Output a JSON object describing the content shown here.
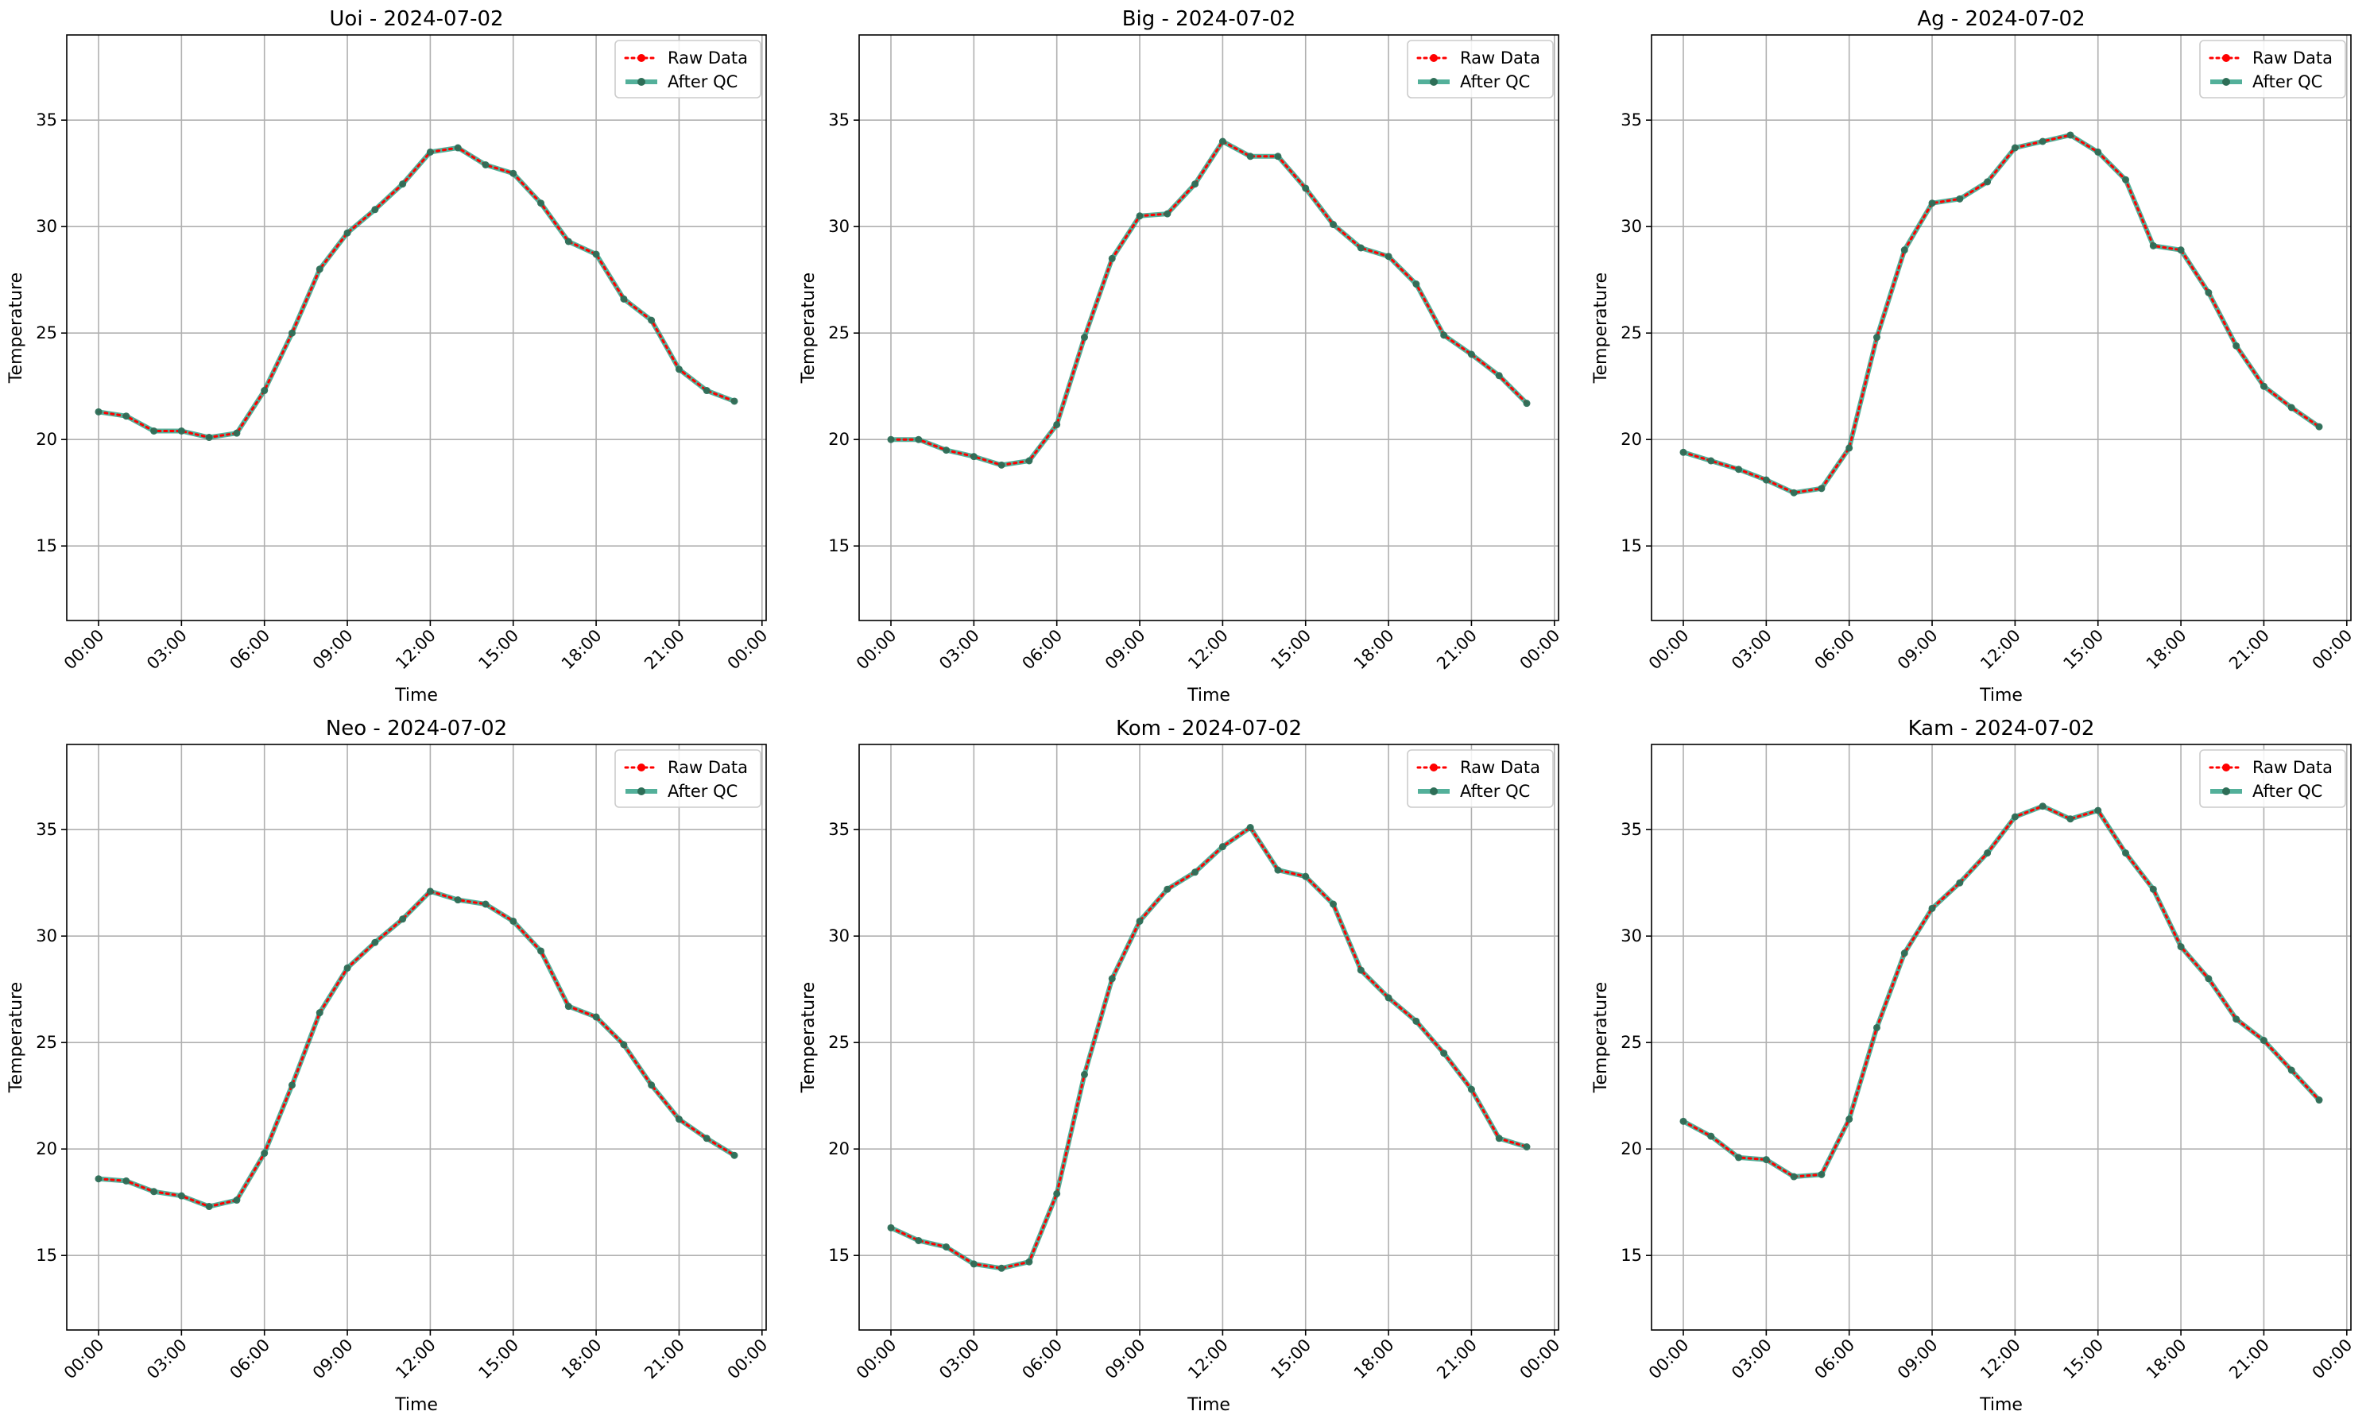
{
  "chart_data": [
    {
      "type": "line",
      "title": "Uoi - 2024-07-02",
      "xlabel": "Time",
      "ylabel": "Temperature",
      "ylim": [
        11.5,
        39
      ],
      "yticks": [
        15,
        20,
        25,
        30,
        35
      ],
      "xticks": [
        "00:00",
        "03:00",
        "06:00",
        "09:00",
        "12:00",
        "15:00",
        "18:00",
        "21:00",
        "00:00"
      ],
      "x": [
        "00:00",
        "01:00",
        "02:00",
        "03:00",
        "04:00",
        "05:00",
        "06:00",
        "07:00",
        "08:00",
        "09:00",
        "10:00",
        "11:00",
        "12:00",
        "13:00",
        "14:00",
        "15:00",
        "16:00",
        "17:00",
        "18:00",
        "19:00",
        "20:00",
        "21:00",
        "22:00",
        "23:00"
      ],
      "legend": {
        "position": "upper right",
        "entries": [
          "Raw Data",
          "After QC"
        ]
      },
      "grid": true,
      "series": [
        {
          "name": "Raw Data",
          "color": "#ff0000",
          "style": "dotted",
          "values": [
            21.3,
            21.1,
            20.4,
            20.4,
            20.1,
            20.3,
            22.3,
            25.0,
            28.0,
            29.7,
            30.8,
            32.0,
            33.5,
            33.7,
            32.9,
            32.5,
            31.1,
            29.3,
            28.7,
            26.6,
            25.6,
            23.3,
            22.3,
            21.8
          ]
        },
        {
          "name": "After QC",
          "color": "#239a7d",
          "style": "solid",
          "values": [
            21.3,
            21.1,
            20.4,
            20.4,
            20.1,
            20.3,
            22.3,
            25.0,
            28.0,
            29.7,
            30.8,
            32.0,
            33.5,
            33.7,
            32.9,
            32.5,
            31.1,
            29.3,
            28.7,
            26.6,
            25.6,
            23.3,
            22.3,
            21.8
          ]
        }
      ]
    },
    {
      "type": "line",
      "title": "Big - 2024-07-02",
      "xlabel": "Time",
      "ylabel": "Temperature",
      "ylim": [
        11.5,
        39
      ],
      "yticks": [
        15,
        20,
        25,
        30,
        35
      ],
      "xticks": [
        "00:00",
        "03:00",
        "06:00",
        "09:00",
        "12:00",
        "15:00",
        "18:00",
        "21:00",
        "00:00"
      ],
      "x": [
        "00:00",
        "01:00",
        "02:00",
        "03:00",
        "04:00",
        "05:00",
        "06:00",
        "07:00",
        "08:00",
        "09:00",
        "10:00",
        "11:00",
        "12:00",
        "13:00",
        "14:00",
        "15:00",
        "16:00",
        "17:00",
        "18:00",
        "19:00",
        "20:00",
        "21:00",
        "22:00",
        "23:00"
      ],
      "legend": {
        "position": "upper right",
        "entries": [
          "Raw Data",
          "After QC"
        ]
      },
      "grid": true,
      "series": [
        {
          "name": "Raw Data",
          "color": "#ff0000",
          "style": "dotted",
          "values": [
            20.0,
            20.0,
            19.5,
            19.2,
            18.8,
            19.0,
            20.7,
            24.8,
            28.5,
            30.5,
            30.6,
            32.0,
            34.0,
            33.3,
            33.3,
            31.8,
            30.1,
            29.0,
            28.6,
            27.3,
            24.9,
            24.0,
            23.0,
            21.7
          ]
        },
        {
          "name": "After QC",
          "color": "#239a7d",
          "style": "solid",
          "values": [
            20.0,
            20.0,
            19.5,
            19.2,
            18.8,
            19.0,
            20.7,
            24.8,
            28.5,
            30.5,
            30.6,
            32.0,
            34.0,
            33.3,
            33.3,
            31.8,
            30.1,
            29.0,
            28.6,
            27.3,
            24.9,
            24.0,
            23.0,
            21.7
          ]
        }
      ]
    },
    {
      "type": "line",
      "title": "Ag - 2024-07-02",
      "xlabel": "Time",
      "ylabel": "Temperature",
      "ylim": [
        11.5,
        39
      ],
      "yticks": [
        15,
        20,
        25,
        30,
        35
      ],
      "xticks": [
        "00:00",
        "03:00",
        "06:00",
        "09:00",
        "12:00",
        "15:00",
        "18:00",
        "21:00",
        "00:00"
      ],
      "x": [
        "00:00",
        "01:00",
        "02:00",
        "03:00",
        "04:00",
        "05:00",
        "06:00",
        "07:00",
        "08:00",
        "09:00",
        "10:00",
        "11:00",
        "12:00",
        "13:00",
        "14:00",
        "15:00",
        "16:00",
        "17:00",
        "18:00",
        "19:00",
        "20:00",
        "21:00",
        "22:00",
        "23:00"
      ],
      "legend": {
        "position": "upper right",
        "entries": [
          "Raw Data",
          "After QC"
        ]
      },
      "grid": true,
      "series": [
        {
          "name": "Raw Data",
          "color": "#ff0000",
          "style": "dotted",
          "values": [
            19.4,
            19.0,
            18.6,
            18.1,
            17.5,
            17.7,
            19.6,
            24.8,
            28.9,
            31.1,
            31.3,
            32.1,
            33.7,
            34.0,
            34.3,
            33.5,
            32.2,
            29.1,
            28.9,
            26.9,
            24.4,
            22.5,
            21.5,
            20.6
          ]
        },
        {
          "name": "After QC",
          "color": "#239a7d",
          "style": "solid",
          "values": [
            19.4,
            19.0,
            18.6,
            18.1,
            17.5,
            17.7,
            19.6,
            24.8,
            28.9,
            31.1,
            31.3,
            32.1,
            33.7,
            34.0,
            34.3,
            33.5,
            32.2,
            29.1,
            28.9,
            26.9,
            24.4,
            22.5,
            21.5,
            20.6
          ]
        }
      ]
    },
    {
      "type": "line",
      "title": "Neo - 2024-07-02",
      "xlabel": "Time",
      "ylabel": "Temperature",
      "ylim": [
        11.5,
        39
      ],
      "yticks": [
        15,
        20,
        25,
        30,
        35
      ],
      "xticks": [
        "00:00",
        "03:00",
        "06:00",
        "09:00",
        "12:00",
        "15:00",
        "18:00",
        "21:00",
        "00:00"
      ],
      "x": [
        "00:00",
        "01:00",
        "02:00",
        "03:00",
        "04:00",
        "05:00",
        "06:00",
        "07:00",
        "08:00",
        "09:00",
        "10:00",
        "11:00",
        "12:00",
        "13:00",
        "14:00",
        "15:00",
        "16:00",
        "17:00",
        "18:00",
        "19:00",
        "20:00",
        "21:00",
        "22:00",
        "23:00"
      ],
      "legend": {
        "position": "upper right",
        "entries": [
          "Raw Data",
          "After QC"
        ]
      },
      "grid": true,
      "series": [
        {
          "name": "Raw Data",
          "color": "#ff0000",
          "style": "dotted",
          "values": [
            18.6,
            18.5,
            18.0,
            17.8,
            17.3,
            17.6,
            19.8,
            23.0,
            26.4,
            28.5,
            29.7,
            30.8,
            32.1,
            31.7,
            31.5,
            30.7,
            29.3,
            26.7,
            26.2,
            24.9,
            23.0,
            21.4,
            20.5,
            19.7
          ]
        },
        {
          "name": "After QC",
          "color": "#239a7d",
          "style": "solid",
          "values": [
            18.6,
            18.5,
            18.0,
            17.8,
            17.3,
            17.6,
            19.8,
            23.0,
            26.4,
            28.5,
            29.7,
            30.8,
            32.1,
            31.7,
            31.5,
            30.7,
            29.3,
            26.7,
            26.2,
            24.9,
            23.0,
            21.4,
            20.5,
            19.7
          ]
        }
      ]
    },
    {
      "type": "line",
      "title": "Kom - 2024-07-02",
      "xlabel": "Time",
      "ylabel": "Temperature",
      "ylim": [
        11.5,
        39
      ],
      "yticks": [
        15,
        20,
        25,
        30,
        35
      ],
      "xticks": [
        "00:00",
        "03:00",
        "06:00",
        "09:00",
        "12:00",
        "15:00",
        "18:00",
        "21:00",
        "00:00"
      ],
      "x": [
        "00:00",
        "01:00",
        "02:00",
        "03:00",
        "04:00",
        "05:00",
        "06:00",
        "07:00",
        "08:00",
        "09:00",
        "10:00",
        "11:00",
        "12:00",
        "13:00",
        "14:00",
        "15:00",
        "16:00",
        "17:00",
        "18:00",
        "19:00",
        "20:00",
        "21:00",
        "22:00",
        "23:00"
      ],
      "legend": {
        "position": "upper right",
        "entries": [
          "Raw Data",
          "After QC"
        ]
      },
      "grid": true,
      "series": [
        {
          "name": "Raw Data",
          "color": "#ff0000",
          "style": "dotted",
          "values": [
            16.3,
            15.7,
            15.4,
            14.6,
            14.4,
            14.7,
            17.9,
            23.5,
            28.0,
            30.7,
            32.2,
            33.0,
            34.2,
            35.1,
            33.1,
            32.8,
            31.5,
            28.4,
            27.1,
            26.0,
            24.5,
            22.8,
            20.5,
            20.1
          ]
        },
        {
          "name": "After QC",
          "color": "#239a7d",
          "style": "solid",
          "values": [
            16.3,
            15.7,
            15.4,
            14.6,
            14.4,
            14.7,
            17.9,
            23.5,
            28.0,
            30.7,
            32.2,
            33.0,
            34.2,
            35.1,
            33.1,
            32.8,
            31.5,
            28.4,
            27.1,
            26.0,
            24.5,
            22.8,
            20.5,
            20.1
          ]
        }
      ]
    },
    {
      "type": "line",
      "title": "Kam - 2024-07-02",
      "xlabel": "Time",
      "ylabel": "Temperature",
      "ylim": [
        11.5,
        39
      ],
      "yticks": [
        15,
        20,
        25,
        30,
        35
      ],
      "xticks": [
        "00:00",
        "03:00",
        "06:00",
        "09:00",
        "12:00",
        "15:00",
        "18:00",
        "21:00",
        "00:00"
      ],
      "x": [
        "00:00",
        "01:00",
        "02:00",
        "03:00",
        "04:00",
        "05:00",
        "06:00",
        "07:00",
        "08:00",
        "09:00",
        "10:00",
        "11:00",
        "12:00",
        "13:00",
        "14:00",
        "15:00",
        "16:00",
        "17:00",
        "18:00",
        "19:00",
        "20:00",
        "21:00",
        "22:00",
        "23:00"
      ],
      "legend": {
        "position": "upper right",
        "entries": [
          "Raw Data",
          "After QC"
        ]
      },
      "grid": true,
      "series": [
        {
          "name": "Raw Data",
          "color": "#ff0000",
          "style": "dotted",
          "values": [
            21.3,
            20.6,
            19.6,
            19.5,
            18.7,
            18.8,
            21.4,
            25.7,
            29.2,
            31.3,
            32.5,
            33.9,
            35.6,
            36.1,
            35.5,
            35.9,
            33.9,
            32.2,
            29.5,
            28.0,
            26.1,
            25.1,
            23.7,
            22.3
          ]
        },
        {
          "name": "After QC",
          "color": "#239a7d",
          "style": "solid",
          "values": [
            21.3,
            20.6,
            19.6,
            19.5,
            18.7,
            18.8,
            21.4,
            25.7,
            29.2,
            31.3,
            32.5,
            33.9,
            35.6,
            36.1,
            35.5,
            35.9,
            33.9,
            32.2,
            29.5,
            28.0,
            26.1,
            25.1,
            23.7,
            22.3
          ]
        }
      ]
    }
  ]
}
